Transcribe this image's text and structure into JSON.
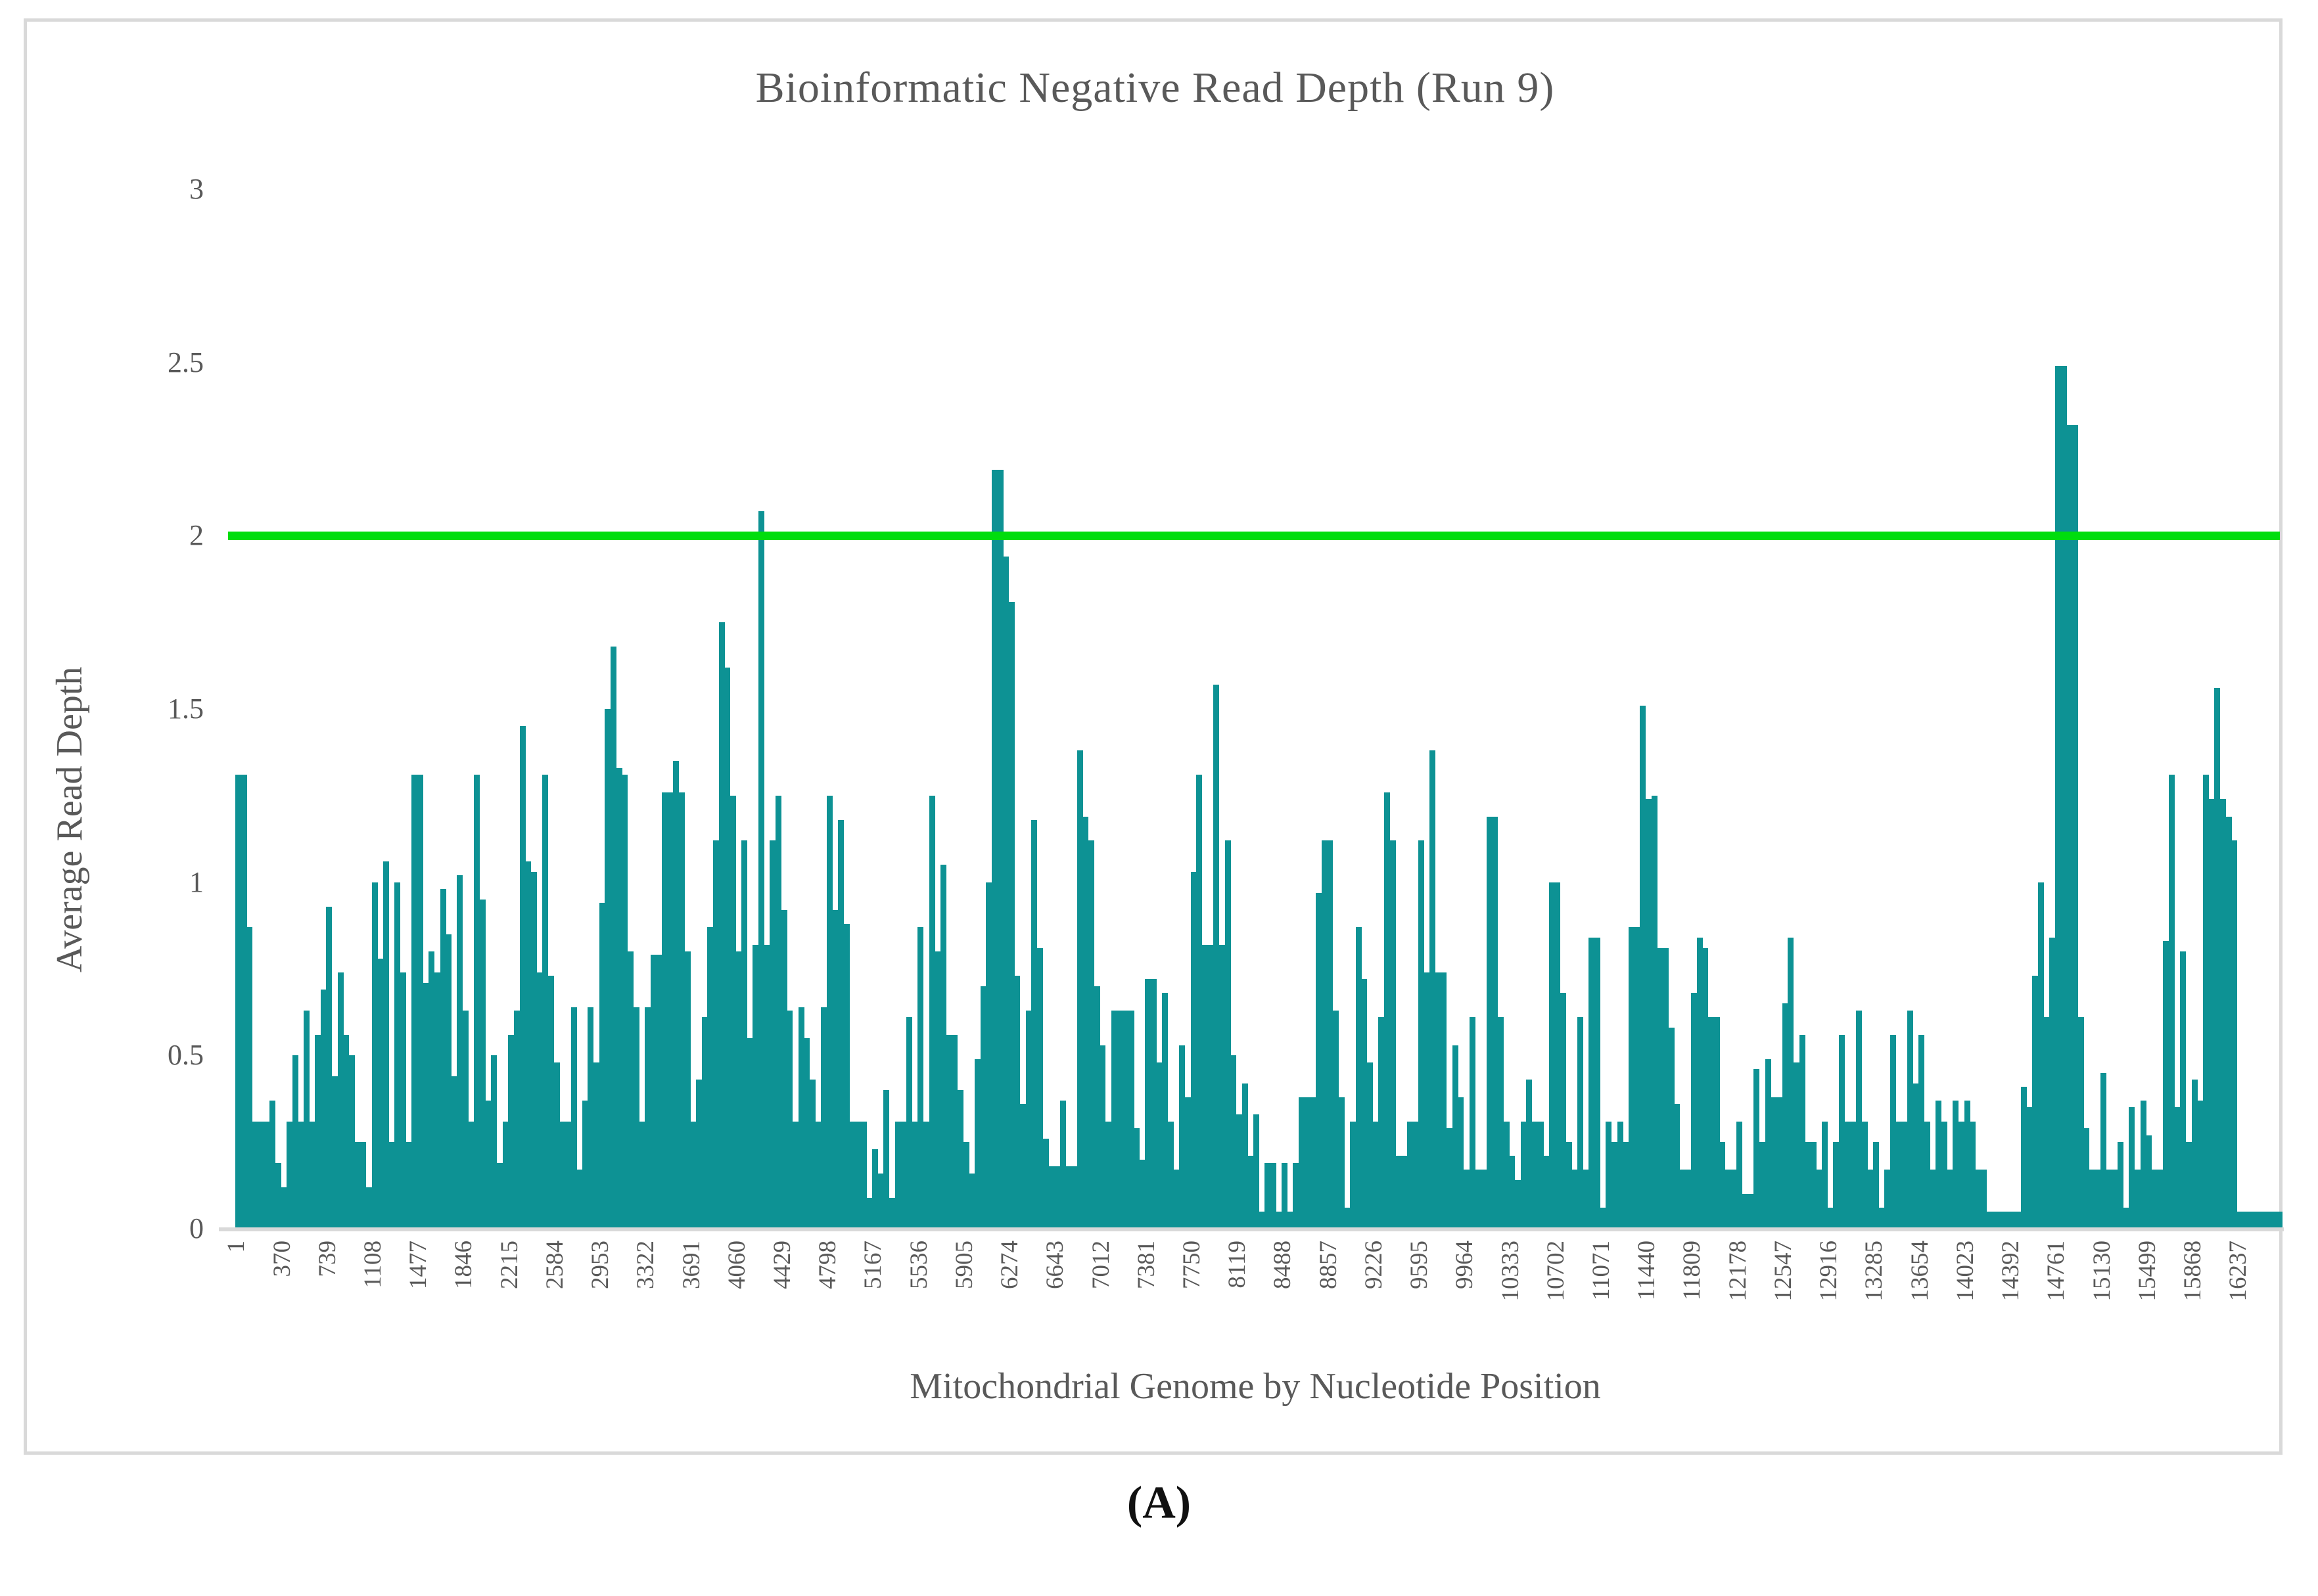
{
  "figure": {
    "panel_label": "(A)"
  },
  "colors": {
    "bar": "#0d9294",
    "threshold_line": "#00dd0d",
    "axis_text": "#595959",
    "axis_line": "#d9d9d9",
    "frame_border": "#d9d9d9",
    "background": "#ffffff",
    "panel_label_text": "#111111"
  },
  "chart_data": {
    "type": "bar",
    "title": "Bioinformatic Negative Read Depth (Run 9)",
    "xlabel": "Mitochondrial Genome by Nucleotide Position",
    "ylabel": "Average Read Depth",
    "ylim": [
      0,
      3
    ],
    "y_ticks": [
      "3",
      "2.5",
      "2",
      "1.5",
      "1",
      "0.5",
      "0"
    ],
    "y_tick_values": [
      3,
      2.5,
      2,
      1.5,
      1,
      0.5,
      0
    ],
    "grid": "off",
    "legend": "none",
    "x_tick_labels": [
      "1",
      "370",
      "739",
      "1108",
      "1477",
      "1846",
      "2215",
      "2584",
      "2953",
      "3322",
      "3691",
      "4060",
      "4429",
      "4798",
      "5167",
      "5536",
      "5905",
      "6274",
      "6643",
      "7012",
      "7381",
      "7750",
      "8119",
      "8488",
      "8857",
      "9226",
      "9595",
      "9964",
      "10333",
      "10702",
      "11071",
      "11440",
      "11809",
      "12178",
      "12547",
      "12916",
      "13285",
      "13654",
      "14023",
      "14392",
      "14761",
      "15130",
      "15499",
      "15868",
      "16237"
    ],
    "x_tick_every_n_bars": 8,
    "overlay_line": {
      "type": "line",
      "name": "threshold",
      "value": 2.0
    },
    "series": [
      {
        "name": "Average Read Depth",
        "values": [
          1.31,
          1.31,
          0.87,
          0.31,
          0.31,
          0.31,
          0.37,
          0.19,
          0.12,
          0.31,
          0.5,
          0.31,
          0.63,
          0.31,
          0.56,
          0.69,
          0.93,
          0.44,
          0.74,
          0.56,
          0.5,
          0.25,
          0.25,
          0.12,
          1.0,
          0.78,
          1.06,
          0.25,
          1.0,
          0.74,
          0.25,
          1.31,
          1.31,
          0.71,
          0.8,
          0.74,
          0.98,
          0.85,
          0.44,
          1.02,
          0.63,
          0.31,
          1.31,
          0.95,
          0.37,
          0.5,
          0.19,
          0.31,
          0.56,
          0.63,
          1.45,
          1.06,
          1.03,
          0.74,
          1.31,
          0.73,
          0.48,
          0.31,
          0.31,
          0.64,
          0.17,
          0.37,
          0.64,
          0.48,
          0.94,
          1.5,
          1.68,
          1.33,
          1.31,
          0.8,
          0.64,
          0.31,
          0.64,
          0.79,
          0.79,
          1.26,
          1.26,
          1.35,
          1.26,
          0.8,
          0.31,
          0.43,
          0.61,
          0.87,
          1.12,
          1.75,
          1.62,
          1.25,
          0.8,
          1.12,
          0.55,
          0.82,
          2.07,
          0.82,
          1.12,
          1.25,
          0.92,
          0.63,
          0.31,
          0.64,
          0.55,
          0.43,
          0.31,
          0.64,
          1.25,
          0.92,
          1.18,
          0.88,
          0.31,
          0.31,
          0.31,
          0.09,
          0.23,
          0.16,
          0.4,
          0.09,
          0.31,
          0.31,
          0.61,
          0.31,
          0.87,
          0.31,
          1.25,
          0.8,
          1.05,
          0.56,
          0.56,
          0.4,
          0.25,
          0.16,
          0.49,
          0.7,
          1.0,
          2.19,
          2.19,
          1.94,
          1.81,
          0.73,
          0.36,
          0.63,
          1.18,
          0.81,
          0.26,
          0.18,
          0.18,
          0.37,
          0.18,
          0.18,
          1.38,
          1.19,
          1.12,
          0.7,
          0.53,
          0.31,
          0.63,
          0.63,
          0.63,
          0.63,
          0.29,
          0.2,
          0.72,
          0.72,
          0.48,
          0.68,
          0.31,
          0.17,
          0.53,
          0.38,
          1.03,
          1.31,
          0.82,
          0.82,
          1.57,
          0.82,
          1.12,
          0.5,
          0.33,
          0.42,
          0.21,
          0.33,
          0.05,
          0.19,
          0.19,
          0.05,
          0.19,
          0.05,
          0.19,
          0.38,
          0.38,
          0.38,
          0.97,
          1.12,
          1.12,
          0.63,
          0.38,
          0.06,
          0.31,
          0.87,
          0.72,
          0.48,
          0.31,
          0.61,
          1.26,
          1.12,
          0.21,
          0.21,
          0.31,
          0.31,
          1.12,
          0.74,
          1.38,
          0.74,
          0.74,
          0.29,
          0.53,
          0.38,
          0.17,
          0.61,
          0.17,
          0.17,
          1.19,
          1.19,
          0.61,
          0.31,
          0.21,
          0.14,
          0.31,
          0.43,
          0.31,
          0.31,
          0.21,
          1.0,
          1.0,
          0.68,
          0.25,
          0.17,
          0.61,
          0.17,
          0.84,
          0.84,
          0.06,
          0.31,
          0.25,
          0.31,
          0.25,
          0.87,
          0.87,
          1.51,
          1.24,
          1.25,
          0.81,
          0.81,
          0.58,
          0.36,
          0.17,
          0.17,
          0.68,
          0.84,
          0.81,
          0.61,
          0.61,
          0.25,
          0.17,
          0.17,
          0.31,
          0.1,
          0.1,
          0.46,
          0.25,
          0.49,
          0.38,
          0.38,
          0.65,
          0.84,
          0.48,
          0.56,
          0.25,
          0.25,
          0.17,
          0.31,
          0.06,
          0.25,
          0.56,
          0.31,
          0.31,
          0.63,
          0.31,
          0.17,
          0.25,
          0.06,
          0.17,
          0.56,
          0.31,
          0.31,
          0.63,
          0.42,
          0.56,
          0.31,
          0.17,
          0.37,
          0.31,
          0.17,
          0.37,
          0.31,
          0.37,
          0.31,
          0.17,
          0.17,
          0.05,
          0.05,
          0.05,
          0.05,
          0.05,
          0.05,
          0.41,
          0.35,
          0.73,
          1.0,
          0.61,
          0.84,
          2.49,
          2.49,
          2.32,
          2.32,
          0.61,
          0.29,
          0.17,
          0.17,
          0.45,
          0.17,
          0.17,
          0.25,
          0.06,
          0.35,
          0.17,
          0.37,
          0.27,
          0.17,
          0.17,
          0.83,
          1.31,
          0.35,
          0.8,
          0.25,
          0.43,
          0.37,
          1.31,
          1.24,
          1.56,
          1.24,
          1.19,
          1.12,
          0.05,
          0.05,
          0.05,
          0.05,
          0.05,
          0.05,
          0.05,
          0.05
        ]
      }
    ]
  }
}
